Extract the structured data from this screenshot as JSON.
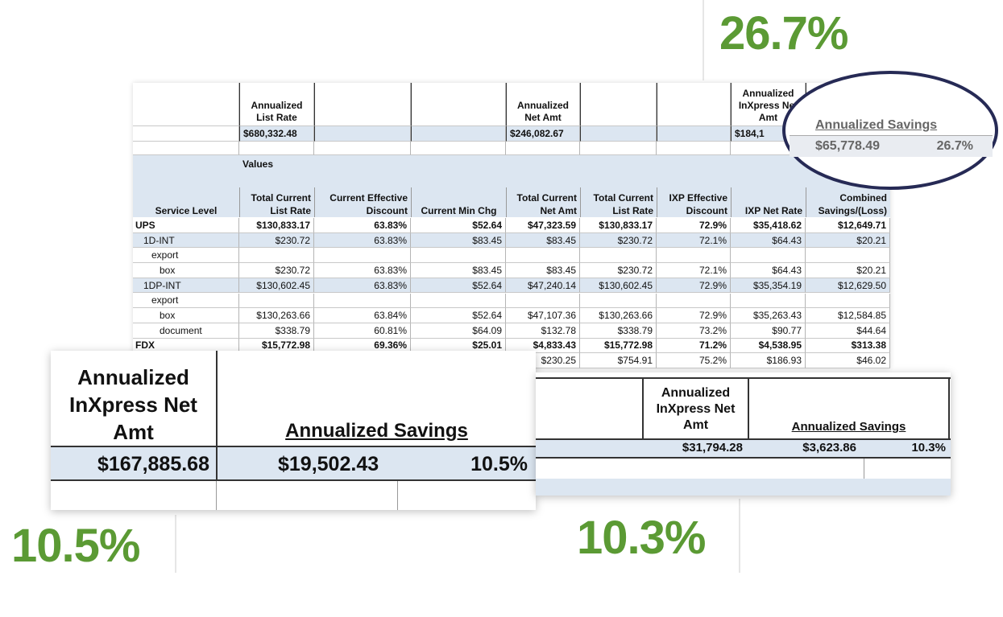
{
  "big_labels": [
    "26.7%",
    "10.5%",
    "10.3%"
  ],
  "main_table": {
    "summary": {
      "headers": [
        null,
        "Annualized List Rate",
        null,
        null,
        "Annualized Net Amt",
        null,
        null,
        "Annualized InXpress Net Amt",
        null
      ],
      "values": [
        null,
        "$680,332.48",
        null,
        null,
        "$246,082.67",
        null,
        null,
        "$184,1",
        null
      ]
    },
    "values_label": "Values",
    "columns": [
      "Service Level",
      "Total Current List Rate",
      "Current Effective Discount",
      "Current Min Chg",
      "Total Current Net Amt",
      "Total Current List Rate",
      "IXP Effective Discount",
      "IXP Net Rate",
      "Combined Savings/(Loss)"
    ],
    "rows": [
      [
        "UPS",
        "$130,833.17",
        "63.83%",
        "$52.64",
        "$47,323.59",
        "$130,833.17",
        "72.9%",
        "$35,418.62",
        "$12,649.71"
      ],
      [
        "1D-INT",
        "$230.72",
        "63.83%",
        "$83.45",
        "$83.45",
        "$230.72",
        "72.1%",
        "$64.43",
        "$20.21"
      ],
      [
        "export",
        null,
        null,
        null,
        null,
        null,
        null,
        null,
        null
      ],
      [
        "box",
        "$230.72",
        "63.83%",
        "$83.45",
        "$83.45",
        "$230.72",
        "72.1%",
        "$64.43",
        "$20.21"
      ],
      [
        "1DP-INT",
        "$130,602.45",
        "63.83%",
        "$52.64",
        "$47,240.14",
        "$130,602.45",
        "72.9%",
        "$35,354.19",
        "$12,629.50"
      ],
      [
        "export",
        null,
        null,
        null,
        null,
        null,
        null,
        null,
        null
      ],
      [
        "box",
        "$130,263.66",
        "63.84%",
        "$52.64",
        "$47,107.36",
        "$130,263.66",
        "72.9%",
        "$35,263.43",
        "$12,584.85"
      ],
      [
        "document",
        "$338.79",
        "60.81%",
        "$64.09",
        "$132.78",
        "$338.79",
        "73.2%",
        "$90.77",
        "$44.64"
      ],
      [
        "FDX",
        "$15,772.98",
        "69.36%",
        "$25.01",
        "$4,833.43",
        "$15,772.98",
        "71.2%",
        "$4,538.95",
        "$313.38"
      ],
      [
        null,
        null,
        null,
        null,
        "$230.25",
        "$754.91",
        "75.2%",
        "$186.93",
        "$46.02"
      ]
    ]
  },
  "zoom_circle": {
    "header": "Annualized Savings",
    "amount": "$65,778.49",
    "percent": "26.7%"
  },
  "zoom_left": {
    "net_header": "Annualized InXpress Net Amt",
    "savings_header": "Annualized Savings",
    "net_amount": "$167,885.68",
    "savings_amount": "$19,502.43",
    "percent": "10.5%"
  },
  "zoom_right": {
    "net_header": "Annualized InXpress Net Amt",
    "savings_header": "Annualized Savings",
    "net_amount": "$31,794.28",
    "savings_amount": "$3,623.86",
    "percent": "10.3%"
  }
}
